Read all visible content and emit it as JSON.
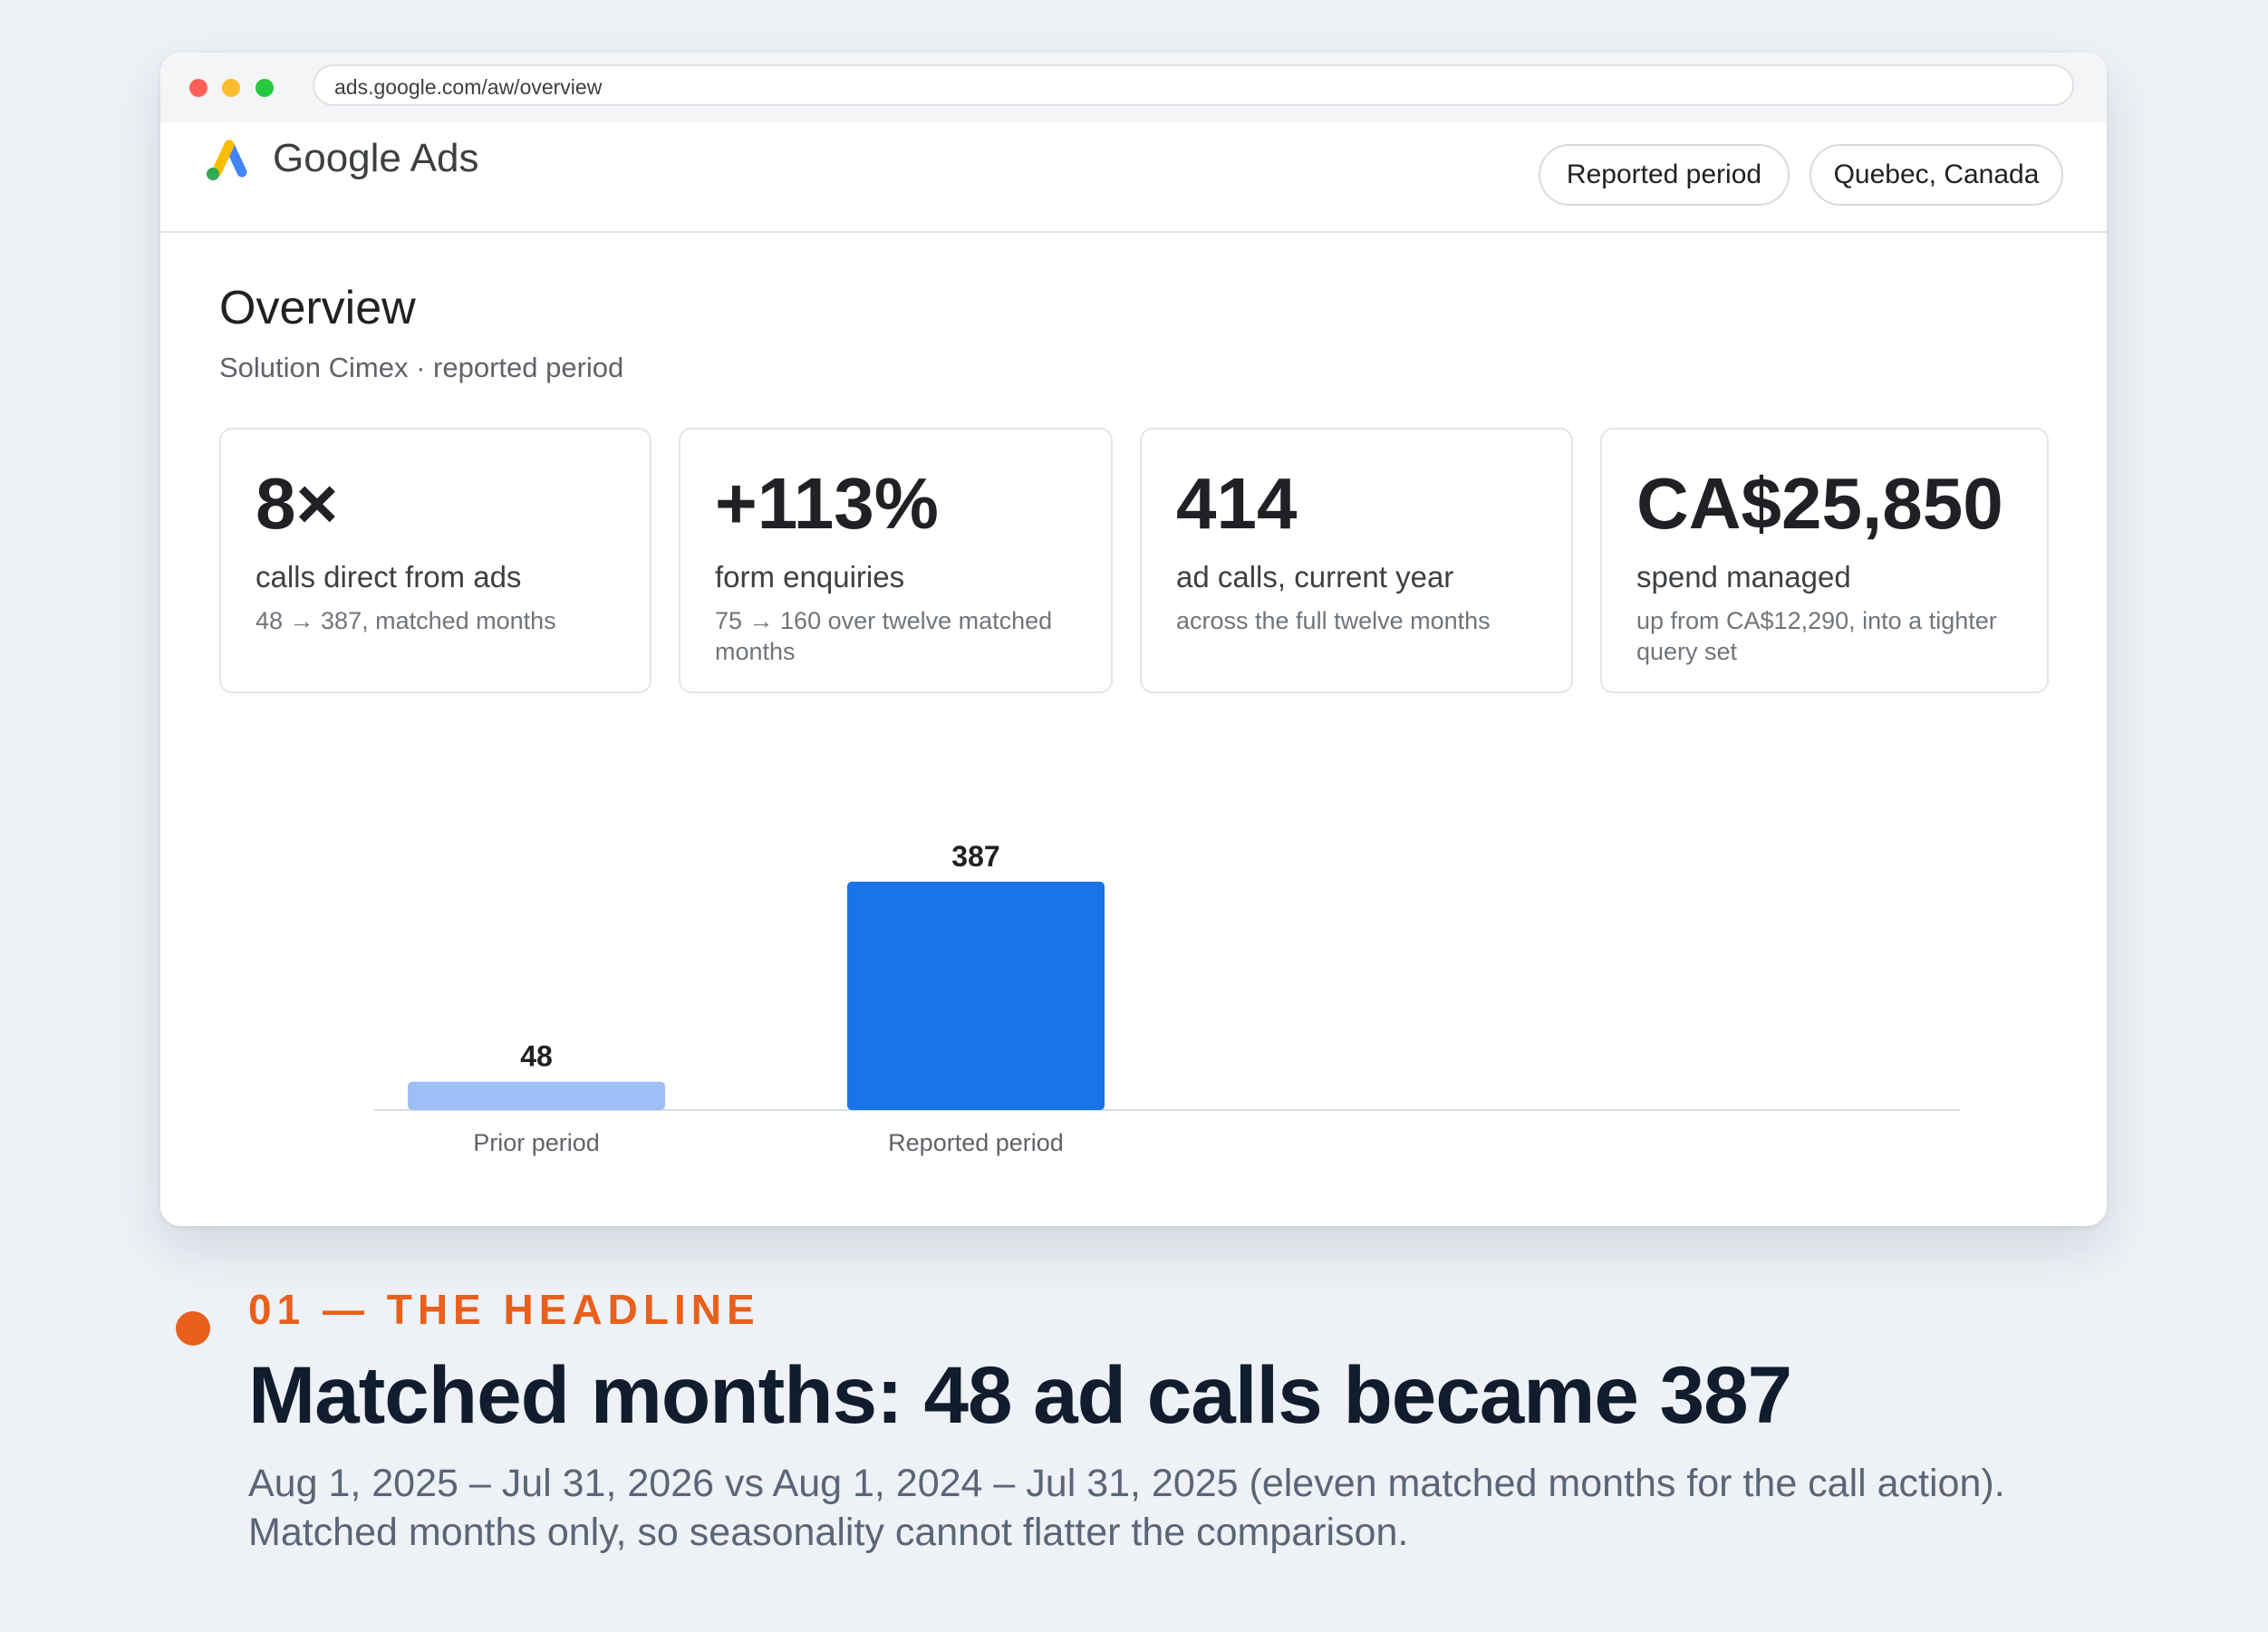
{
  "browser": {
    "url": "ads.google.com/aw/overview"
  },
  "app": {
    "brand": "Google Ads",
    "filters": {
      "period": "Reported period",
      "region": "Quebec, Canada"
    }
  },
  "overview": {
    "title": "Overview",
    "subtitle": "Solution Cimex · reported period"
  },
  "kpis": [
    {
      "value": "8×",
      "label": "calls direct from ads",
      "note": "48 → 387, matched months"
    },
    {
      "value": "+113%",
      "label": "form enquiries",
      "note": "75 → 160 over twelve matched months"
    },
    {
      "value": "414",
      "label": "ad calls, current year",
      "note": "across the full twelve months"
    },
    {
      "value": "CA$25,850",
      "label": "spend managed",
      "note": "up from CA$12,290, into a tighter query set"
    }
  ],
  "chart_data": {
    "type": "bar",
    "categories": [
      "Prior period",
      "Reported period"
    ],
    "values": [
      48,
      387
    ],
    "colors": [
      "#9cc0f5",
      "#1b73e8"
    ],
    "ylim": [
      0,
      387
    ],
    "grid": false
  },
  "story": {
    "kicker": "01 — THE HEADLINE",
    "headline": "Matched months: 48 ad calls became 387",
    "caption_line1": "Aug 1, 2025 – Jul 31, 2026 vs Aug 1, 2024 – Jul 31, 2025 (eleven matched months for the call action).",
    "caption_line2": "Matched months only, so seasonality cannot flatter the comparison.",
    "accent": "#e8601c"
  }
}
